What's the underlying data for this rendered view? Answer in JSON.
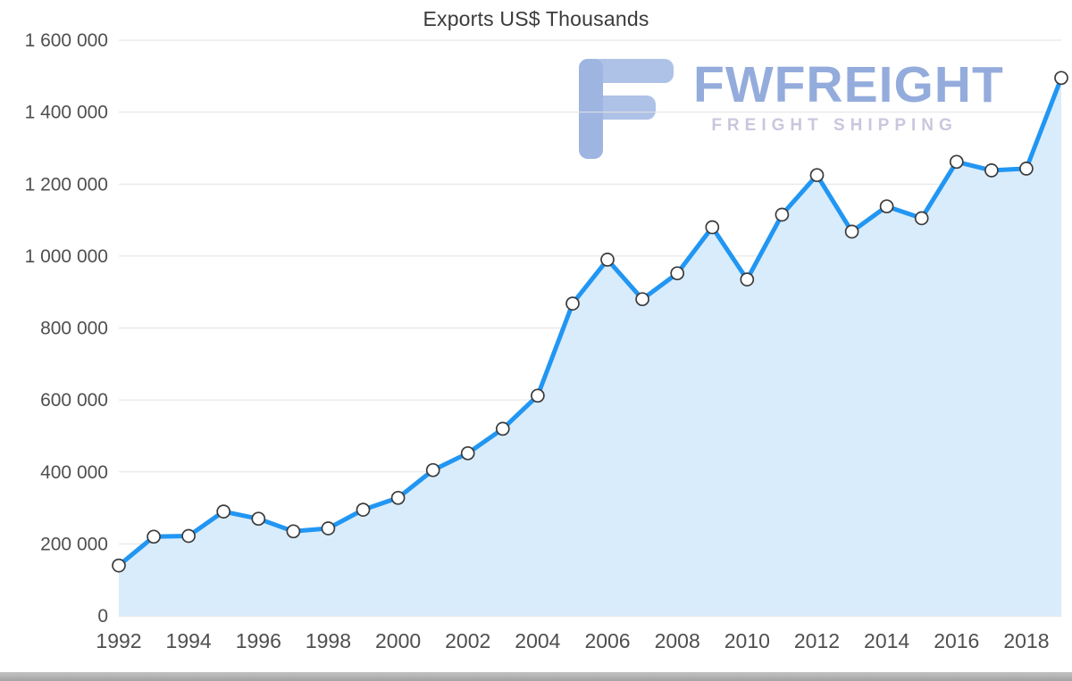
{
  "watermark": {
    "brand": "FWFREIGHT",
    "tagline": "FREIGHT SHIPPING"
  },
  "chart_data": {
    "type": "area",
    "title": "Exports US$ Thousands",
    "xlabel": "",
    "ylabel": "",
    "x": [
      1992,
      1993,
      1994,
      1995,
      1996,
      1997,
      1998,
      1999,
      2000,
      2001,
      2002,
      2003,
      2004,
      2005,
      2006,
      2007,
      2008,
      2009,
      2010,
      2011,
      2012,
      2013,
      2014,
      2015,
      2016,
      2017,
      2018,
      2019
    ],
    "values": [
      140000,
      220000,
      222000,
      290000,
      270000,
      235000,
      243000,
      295000,
      328000,
      405000,
      452000,
      520000,
      612000,
      868000,
      990000,
      880000,
      952000,
      1080000,
      935000,
      1115000,
      1225000,
      1068000,
      1138000,
      1105000,
      1262000,
      1238000,
      1243000,
      1495000
    ],
    "xticks": [
      1992,
      1994,
      1996,
      1998,
      2000,
      2002,
      2004,
      2006,
      2008,
      2010,
      2012,
      2014,
      2016,
      2018
    ],
    "ylim": [
      0,
      1600000
    ],
    "ytick_step": 200000,
    "ytick_format": "thousands-space",
    "grid": true,
    "legend": "none",
    "colors": {
      "line": "#2196f3",
      "area": "#d9ecfb",
      "marker_fill": "#ffffff",
      "marker_stroke": "#3b3b3b",
      "grid": "#e2e2e2",
      "baseline": "#cfcfcf",
      "axis_text": "#4f4f4f",
      "title_text": "#3b3b3b",
      "watermark_logo": "#a8bde6",
      "watermark_brand": "#8ca6da",
      "watermark_tagline": "#c7c2db"
    }
  }
}
